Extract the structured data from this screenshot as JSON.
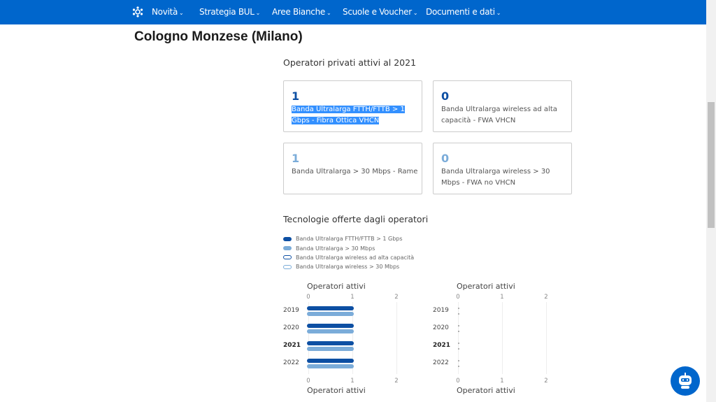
{
  "nav": {
    "items": [
      {
        "label": "Novità"
      },
      {
        "label": "Strategia BUL"
      },
      {
        "label": "Aree Bianche"
      },
      {
        "label": "Scuole e Voucher"
      },
      {
        "label": "Documenti e dati"
      }
    ],
    "color": "#0066cc"
  },
  "page_title": "Cologno Monzese (Milano)",
  "operators": {
    "title": "Operatori privati attivi al 2021",
    "cards": [
      {
        "value": "1",
        "label": "Banda Ultralarga FTTH/FTTB > 1 Gbps - Fibra Ottica VHCN",
        "color": "#0d4fa3",
        "selected": true
      },
      {
        "value": "0",
        "label": "Banda Ultralarga wireless ad alta capacità - FWA VHCN",
        "color": "#0d4fa3"
      },
      {
        "value": "1",
        "label": "Banda Ultralarga > 30 Mbps - Rame",
        "color": "#7bacd9"
      },
      {
        "value": "0",
        "label": "Banda Ultralarga wireless > 30 Mbps - FWA no VHCN",
        "color": "#7bacd9"
      }
    ]
  },
  "technologies": {
    "title": "Tecnologie offerte dagli operatori",
    "legend": [
      {
        "label": "Banda Ultralarga FTTH/FTTB > 1 Gbps",
        "color": "#0d4fa3",
        "style": "filled"
      },
      {
        "label": "Banda Ultralarga > 30 Mbps",
        "color": "#7bacd9",
        "style": "filled"
      },
      {
        "label": "Banda Ultralarga wireless ad alta capacità",
        "color": "#0d4fa3",
        "style": "outline"
      },
      {
        "label": "Banda Ultralarga wireless > 30 Mbps",
        "color": "#7bacd9",
        "style": "outline"
      }
    ]
  },
  "chart_data": [
    {
      "type": "bar",
      "orientation": "horizontal",
      "xlabel": "Operatori attivi",
      "categories": [
        "2019",
        "2020",
        "2021",
        "2022"
      ],
      "highlight_category": "2021",
      "xlim": [
        0,
        2
      ],
      "xticks": [
        "0",
        "1",
        "2"
      ],
      "grid": true,
      "series": [
        {
          "name": "Banda Ultralarga FTTH/FTTB > 1 Gbps",
          "color": "#0d4fa3",
          "values": [
            1,
            1,
            1,
            1
          ]
        },
        {
          "name": "Banda Ultralarga > 30 Mbps",
          "color": "#7bacd9",
          "values": [
            1,
            1,
            1,
            1
          ]
        }
      ]
    },
    {
      "type": "bar",
      "orientation": "horizontal",
      "xlabel": "Operatori attivi",
      "categories": [
        "2019",
        "2020",
        "2021",
        "2022"
      ],
      "highlight_category": "2021",
      "xlim": [
        0,
        2
      ],
      "xticks": [
        "0",
        "1",
        "2"
      ],
      "grid": true,
      "series": [
        {
          "name": "Banda Ultralarga wireless ad alta capacità",
          "color": "#0d4fa3",
          "values": [
            0,
            0,
            0,
            0
          ]
        },
        {
          "name": "Banda Ultralarga wireless > 30 Mbps",
          "color": "#7bacd9",
          "values": [
            0,
            0,
            0,
            0
          ]
        }
      ]
    }
  ]
}
